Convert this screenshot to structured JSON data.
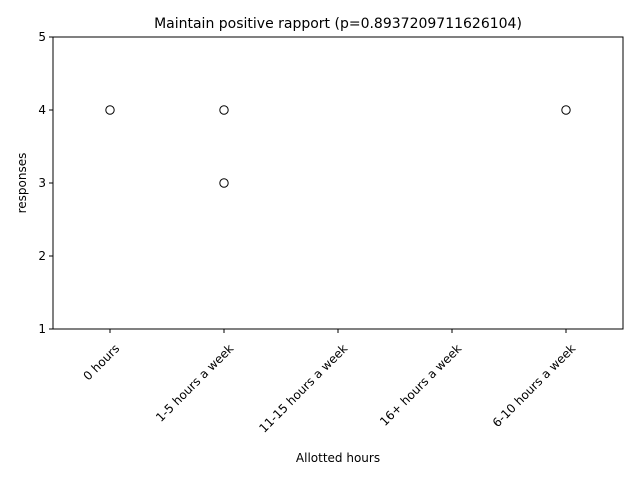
{
  "chart_data": {
    "type": "box",
    "title": "Maintain positive rapport (p=0.8937209711626104)",
    "xlabel": "Allotted hours",
    "ylabel": "responses",
    "categories": [
      "0 hours",
      "1-5 hours a week",
      "11-15 hours a week",
      "16+ hours a week",
      "6-10 hours a week"
    ],
    "ylim": [
      1,
      5
    ],
    "yticks": [
      "1",
      "2",
      "3",
      "4",
      "5"
    ],
    "medians": [
      5,
      5,
      5,
      5,
      5
    ],
    "outliers": [
      {
        "category": "0 hours",
        "values": [
          4
        ]
      },
      {
        "category": "1-5 hours a week",
        "values": [
          4,
          3
        ]
      },
      {
        "category": "6-10 hours a week",
        "values": [
          4
        ]
      }
    ],
    "grid": false,
    "legend": "none"
  }
}
